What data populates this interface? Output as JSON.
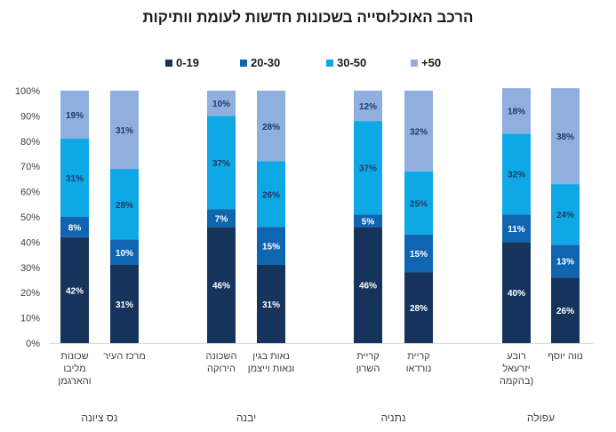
{
  "title": "הרכב האוכלוסייה בשכונות חדשות לעומת וותיקות",
  "legend": [
    {
      "label": "0-19",
      "color": "#16335c"
    },
    {
      "label": "20-30",
      "color": "#1065b0"
    },
    {
      "label": "30-50",
      "color": "#0fa8e6"
    },
    {
      "label": "+50",
      "color": "#8fb0df"
    }
  ],
  "chart_data": {
    "type": "bar",
    "stacked": true,
    "title": "הרכב האוכלוסייה בשכונות חדשות לעומת וותיקות",
    "xlabel": "",
    "ylabel": "",
    "ylim": [
      0,
      100
    ],
    "yticks": [
      "0%",
      "10%",
      "20%",
      "30%",
      "40%",
      "50%",
      "60%",
      "70%",
      "80%",
      "90%",
      "100%"
    ],
    "legend_position": "top",
    "grid": false,
    "categories": [
      "שכונות מליבו והארגמן",
      "מרכז העיר",
      "השכונה הירוקה",
      "נאות בגין ונאות וייצמן",
      "קריית השרון",
      "קריית נורדאו",
      "רובע יזרעאל (בהקמה)",
      "נווה יוסף"
    ],
    "category_lines": [
      [
        "שכונות",
        "מליבו",
        "והארגמן"
      ],
      [
        "מרכז העיר"
      ],
      [
        "השכונה",
        "הירוקה"
      ],
      [
        "נאות בגין",
        "ונאות וייצמן"
      ],
      [
        "קריית",
        "השרון"
      ],
      [
        "קריית",
        "נורדאו"
      ],
      [
        "רובע",
        "יזרעאל",
        "(בהקמה"
      ],
      [
        "נווה יוסף"
      ]
    ],
    "groups": [
      {
        "name": "נס ציונה",
        "categories": [
          0,
          1
        ]
      },
      {
        "name": "יבנה",
        "categories": [
          2,
          3
        ]
      },
      {
        "name": "נתניה",
        "categories": [
          4,
          5
        ]
      },
      {
        "name": "עפולה",
        "categories": [
          6,
          7
        ]
      }
    ],
    "series": [
      {
        "name": "0-19",
        "values": [
          42,
          31,
          46,
          31,
          46,
          28,
          40,
          26
        ]
      },
      {
        "name": "20-30",
        "values": [
          8,
          10,
          7,
          15,
          5,
          15,
          11,
          13
        ]
      },
      {
        "name": "30-50",
        "values": [
          31,
          28,
          37,
          26,
          37,
          25,
          32,
          24
        ]
      },
      {
        "name": "+50",
        "values": [
          19,
          31,
          10,
          28,
          12,
          32,
          18,
          38
        ]
      }
    ],
    "data_labels": [
      [
        "42%",
        "31%",
        "46%",
        "31%",
        "46%",
        "28%",
        "40%",
        "26%"
      ],
      [
        "8%",
        "10%",
        "7%",
        "15%",
        "5%",
        "15%",
        "11%",
        "13%"
      ],
      [
        "31%",
        "28%",
        "37%",
        "26%",
        "37%",
        "25%",
        "32%",
        "24%"
      ],
      [
        "19%",
        "31%",
        "10%",
        "28%",
        "12%",
        "32%",
        "18%",
        "38%"
      ]
    ]
  }
}
